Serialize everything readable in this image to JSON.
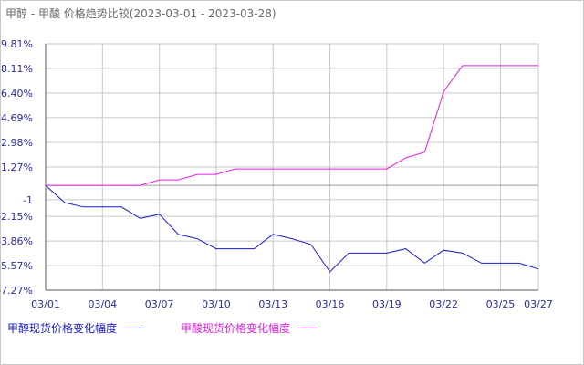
{
  "title": {
    "main": "甲醇 - 甲酸 价格趋势比较",
    "date_range": "(2023-03-01 - 2023-03-28)"
  },
  "colors": {
    "series_methanol": "#1a1ac8",
    "series_formic": "#e020e0",
    "axis": "#555555",
    "grid": "#c8c8c8",
    "tick_text": "#2a2aa0",
    "title_text": "#6b6b6b"
  },
  "chart_data": {
    "type": "line",
    "title": "甲醇 - 甲酸 价格趋势比较(2023-03-01 - 2023-03-28)",
    "xlabel": "",
    "ylabel": "",
    "ylim": [
      -7.27,
      9.81
    ],
    "y_ticks": [
      "9.81%",
      "8.11%",
      "6.40%",
      "4.69%",
      "2.98%",
      "1.27%",
      "-1",
      "-2.15%",
      "-3.86%",
      "-5.57%",
      "-7.27%"
    ],
    "y_tick_values": [
      9.81,
      8.11,
      6.4,
      4.69,
      2.98,
      1.27,
      -1,
      -2.15,
      -3.86,
      -5.57,
      -7.27
    ],
    "x_ticks": [
      "03/01",
      "03/04",
      "03/07",
      "03/10",
      "03/13",
      "03/16",
      "03/19",
      "03/22",
      "03/25",
      "03/27"
    ],
    "x_tick_days": [
      1,
      4,
      7,
      10,
      13,
      16,
      19,
      22,
      25,
      27
    ],
    "x_range_days": [
      1,
      27
    ],
    "grid": true,
    "legend_position": "bottom-left",
    "series": [
      {
        "name": "甲醇现货价格变化幅度",
        "x": [
          1,
          2,
          3,
          4,
          5,
          6,
          7,
          8,
          9,
          10,
          11,
          12,
          13,
          14,
          15,
          16,
          17,
          18,
          19,
          20,
          21,
          22,
          23,
          24,
          25,
          26,
          27
        ],
        "y": [
          0,
          -1.2,
          -1.5,
          -1.5,
          -1.5,
          -2.3,
          -2.0,
          -3.4,
          -3.7,
          -4.4,
          -4.4,
          -4.4,
          -3.4,
          -3.7,
          -4.1,
          -6.0,
          -4.7,
          -4.7,
          -4.7,
          -4.4,
          -5.4,
          -4.5,
          -4.7,
          -5.4,
          -5.4,
          -5.4,
          -5.8
        ]
      },
      {
        "name": "甲酸现货价格变化幅度",
        "x": [
          1,
          2,
          3,
          4,
          5,
          6,
          7,
          8,
          9,
          10,
          11,
          12,
          13,
          14,
          15,
          16,
          17,
          18,
          19,
          20,
          21,
          22,
          23,
          24,
          25,
          26,
          27
        ],
        "y": [
          0,
          0,
          0,
          0,
          0,
          0,
          0.38,
          0.38,
          0.76,
          0.76,
          1.14,
          1.14,
          1.14,
          1.14,
          1.14,
          1.14,
          1.14,
          1.14,
          1.14,
          1.9,
          2.3,
          6.5,
          8.3,
          8.3,
          8.3,
          8.3,
          8.3
        ]
      }
    ]
  }
}
